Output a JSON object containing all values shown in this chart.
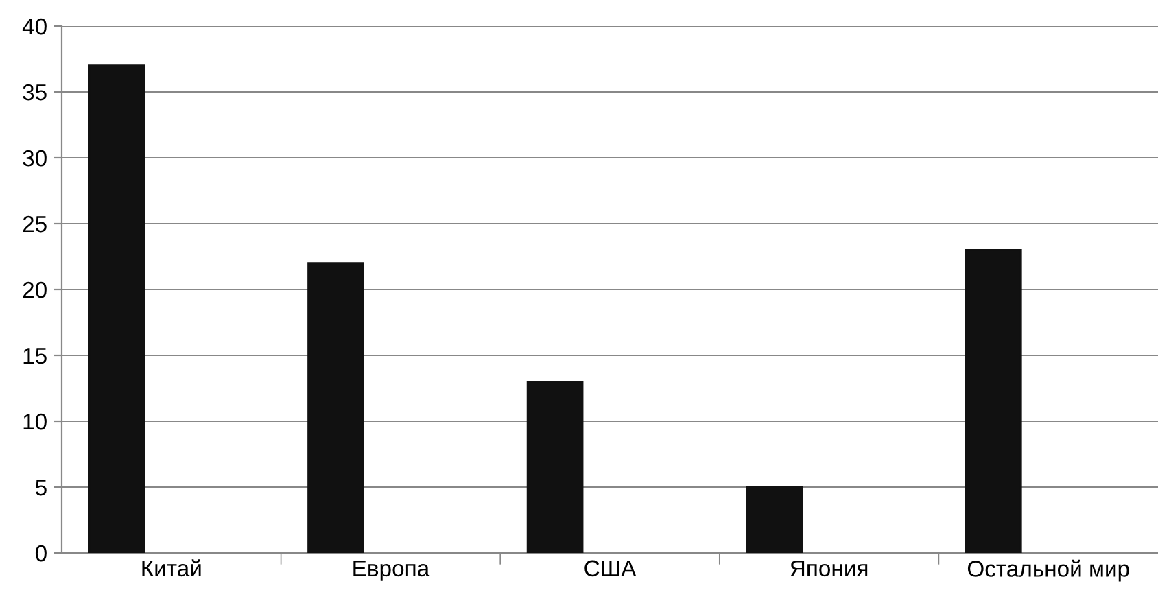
{
  "chart_data": {
    "type": "bar",
    "categories": [
      "Китай",
      "Европа",
      "США",
      "Япония",
      "Остальной мир"
    ],
    "values": [
      37,
      22,
      13,
      5,
      23
    ],
    "color": "#111111",
    "ylim": [
      0,
      40
    ],
    "yticks": [
      0,
      5,
      10,
      15,
      20,
      25,
      30,
      35,
      40
    ],
    "grid": "y",
    "legend": false
  }
}
